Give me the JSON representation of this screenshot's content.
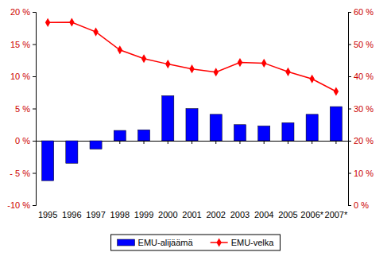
{
  "chart_data": {
    "type": "bar",
    "categories": [
      "1995",
      "1996",
      "1997",
      "1998",
      "1999",
      "2000",
      "2001",
      "2002",
      "2003",
      "2004",
      "2005",
      "2006*",
      "2007*"
    ],
    "series": [
      {
        "name": "EMU-alijäämä",
        "type": "bar",
        "color": "#0000ff",
        "values": [
          -6.2,
          -3.5,
          -1.3,
          1.6,
          1.7,
          7.0,
          5.0,
          4.1,
          2.5,
          2.3,
          2.8,
          4.1,
          5.3
        ]
      },
      {
        "name": "EMU-velka",
        "type": "line",
        "color": "#ff0000",
        "marker": "diamond",
        "axis": "y2",
        "values": [
          56.7,
          56.8,
          53.8,
          48.2,
          45.5,
          43.8,
          42.3,
          41.3,
          44.3,
          44.1,
          41.4,
          39.2,
          35.3
        ]
      }
    ],
    "ylim": [
      -10,
      20
    ],
    "yticks": [
      {
        "value": -10,
        "label": "-10 %"
      },
      {
        "value": -5,
        "label": "- 5 %"
      },
      {
        "value": 0,
        "label": "0 %"
      },
      {
        "value": 5,
        "label": "5 %"
      },
      {
        "value": 10,
        "label": "10 %"
      },
      {
        "value": 15,
        "label": "15 %"
      },
      {
        "value": 20,
        "label": "20 %"
      }
    ],
    "y2lim": [
      0,
      60
    ],
    "y2ticks": [
      {
        "value": 0,
        "label": "0 %"
      },
      {
        "value": 10,
        "label": "10 %"
      },
      {
        "value": 20,
        "label": "20 %"
      },
      {
        "value": 30,
        "label": "30 %"
      },
      {
        "value": 40,
        "label": "40 %"
      },
      {
        "value": 50,
        "label": "50 %"
      },
      {
        "value": 60,
        "label": "60 %"
      }
    ],
    "grid": false,
    "legend": "bottom"
  }
}
